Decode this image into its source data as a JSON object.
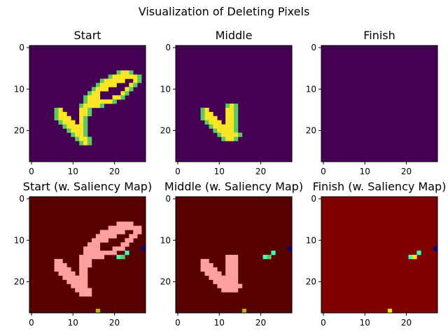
{
  "figure": {
    "title": "Visualization of Deleting Pixels"
  },
  "colors": {
    "viridis_dark": "#440154",
    "viridis_yellow": "#fde725",
    "viridis_green": "#5ec962",
    "viridis_teal": "#21918c",
    "saliency_background": "#800000",
    "saliency_background_dark": "#560000",
    "saliency_highlight": "#ffa0a0",
    "saliency_navy": "#000080",
    "saliency_cyan": "#40ffb7",
    "saliency_yellow": "#ffe600",
    "saliency_olive": "#b7b700"
  },
  "chart_data": [
    {
      "type": "heatmap",
      "title": "Start",
      "colormap": "viridis",
      "xticks": [
        0,
        10,
        20
      ],
      "yticks": [
        0,
        10,
        20
      ],
      "xlim": [
        -0.5,
        27.5
      ],
      "ylim": [
        27.5,
        -0.5
      ],
      "rows": [
        {
          "y": 6,
          "x": [
            21,
            22,
            23,
            24
          ]
        },
        {
          "y": 7,
          "x": [
            19,
            20,
            21,
            22,
            23,
            24,
            25,
            26
          ]
        },
        {
          "y": 8,
          "x": [
            17,
            18,
            19,
            20,
            21,
            22,
            25,
            26
          ]
        },
        {
          "y": 9,
          "x": [
            16,
            17,
            18,
            19,
            20,
            24,
            25
          ]
        },
        {
          "y": 10,
          "x": [
            15,
            16,
            17,
            18,
            23,
            24
          ]
        },
        {
          "y": 11,
          "x": [
            14,
            15,
            16,
            22,
            23
          ]
        },
        {
          "y": 12,
          "x": [
            13,
            14,
            15,
            16,
            20,
            21,
            22
          ]
        },
        {
          "y": 13,
          "x": [
            13,
            14,
            15,
            16,
            17,
            18,
            19,
            20
          ]
        },
        {
          "y": 14,
          "x": [
            12,
            13,
            14,
            15,
            16,
            17
          ]
        },
        {
          "y": 15,
          "x": [
            6,
            7,
            12,
            13,
            14
          ]
        },
        {
          "y": 16,
          "x": [
            6,
            7,
            8,
            12,
            13,
            14
          ]
        },
        {
          "y": 17,
          "x": [
            6,
            7,
            8,
            9,
            12,
            13
          ]
        },
        {
          "y": 18,
          "x": [
            7,
            8,
            9,
            10,
            12,
            13
          ]
        },
        {
          "y": 19,
          "x": [
            8,
            9,
            10,
            11,
            12,
            13
          ]
        },
        {
          "y": 20,
          "x": [
            9,
            10,
            11,
            12,
            13
          ]
        },
        {
          "y": 21,
          "x": [
            10,
            11,
            12,
            13
          ]
        },
        {
          "y": 22,
          "x": [
            11,
            12,
            13,
            14
          ]
        },
        {
          "y": 23,
          "x": [
            12,
            13,
            14
          ]
        }
      ]
    },
    {
      "type": "heatmap",
      "title": "Middle",
      "colormap": "viridis",
      "xticks": [
        0,
        10,
        20
      ],
      "yticks": [
        0,
        10,
        20
      ],
      "xlim": [
        -0.5,
        27.5
      ],
      "ylim": [
        27.5,
        -0.5
      ],
      "rows": [
        {
          "y": 14,
          "x": [
            12,
            13,
            14
          ]
        },
        {
          "y": 15,
          "x": [
            6,
            7,
            12,
            13,
            14
          ]
        },
        {
          "y": 16,
          "x": [
            6,
            7,
            8,
            12,
            13,
            14
          ]
        },
        {
          "y": 17,
          "x": [
            6,
            7,
            8,
            9,
            12,
            13,
            14
          ]
        },
        {
          "y": 18,
          "x": [
            7,
            8,
            9,
            10,
            12,
            13,
            14
          ]
        },
        {
          "y": 19,
          "x": [
            8,
            9,
            10,
            11,
            12,
            13,
            14
          ]
        },
        {
          "y": 20,
          "x": [
            9,
            10,
            11,
            12,
            13,
            14
          ]
        },
        {
          "y": 21,
          "x": [
            10,
            11,
            12,
            13,
            14,
            15
          ]
        },
        {
          "y": 22,
          "x": [
            11,
            12,
            13,
            14
          ]
        }
      ]
    },
    {
      "type": "heatmap",
      "title": "Finish",
      "colormap": "viridis",
      "xticks": [
        0,
        10,
        20
      ],
      "yticks": [
        0,
        10,
        20
      ],
      "xlim": [
        -0.5,
        27.5
      ],
      "ylim": [
        27.5,
        -0.5
      ],
      "rows": []
    },
    {
      "type": "heatmap",
      "title": "Start (w. Saliency Map)",
      "colormap": "jet_overlay",
      "xticks": [
        0,
        10,
        20
      ],
      "yticks": [
        0,
        10,
        20
      ],
      "xlim": [
        -0.5,
        27.5
      ],
      "ylim": [
        27.5,
        -0.5
      ],
      "saliency_points": [
        {
          "x": 21,
          "y": 14,
          "level": "cyan"
        },
        {
          "x": 22,
          "y": 14,
          "level": "green"
        },
        {
          "x": 23,
          "y": 13,
          "level": "cyan"
        },
        {
          "x": 27,
          "y": 12,
          "level": "navy"
        },
        {
          "x": 16,
          "y": 27,
          "level": "olive"
        }
      ]
    },
    {
      "type": "heatmap",
      "title": "Middle (w. Saliency Map)",
      "colormap": "jet_overlay",
      "xticks": [
        0,
        10,
        20
      ],
      "yticks": [
        0,
        10,
        20
      ],
      "xlim": [
        -0.5,
        27.5
      ],
      "ylim": [
        27.5,
        -0.5
      ],
      "saliency_points": [
        {
          "x": 21,
          "y": 14,
          "level": "cyan"
        },
        {
          "x": 22,
          "y": 14,
          "level": "green"
        },
        {
          "x": 23,
          "y": 13,
          "level": "cyan"
        },
        {
          "x": 27,
          "y": 12,
          "level": "navy"
        },
        {
          "x": 16,
          "y": 27,
          "level": "olive"
        }
      ]
    },
    {
      "type": "heatmap",
      "title": "Finish (w. Saliency Map)",
      "colormap": "jet",
      "xticks": [
        0,
        10,
        20
      ],
      "yticks": [
        0,
        10,
        20
      ],
      "xlim": [
        -0.5,
        27.5
      ],
      "ylim": [
        27.5,
        -0.5
      ],
      "saliency_points": [
        {
          "x": 21,
          "y": 14,
          "level": "cyan"
        },
        {
          "x": 22,
          "y": 14,
          "level": "yellow"
        },
        {
          "x": 23,
          "y": 13,
          "level": "cyan"
        },
        {
          "x": 27,
          "y": 12,
          "level": "navy"
        },
        {
          "x": 16,
          "y": 27,
          "level": "yellow"
        }
      ]
    }
  ]
}
